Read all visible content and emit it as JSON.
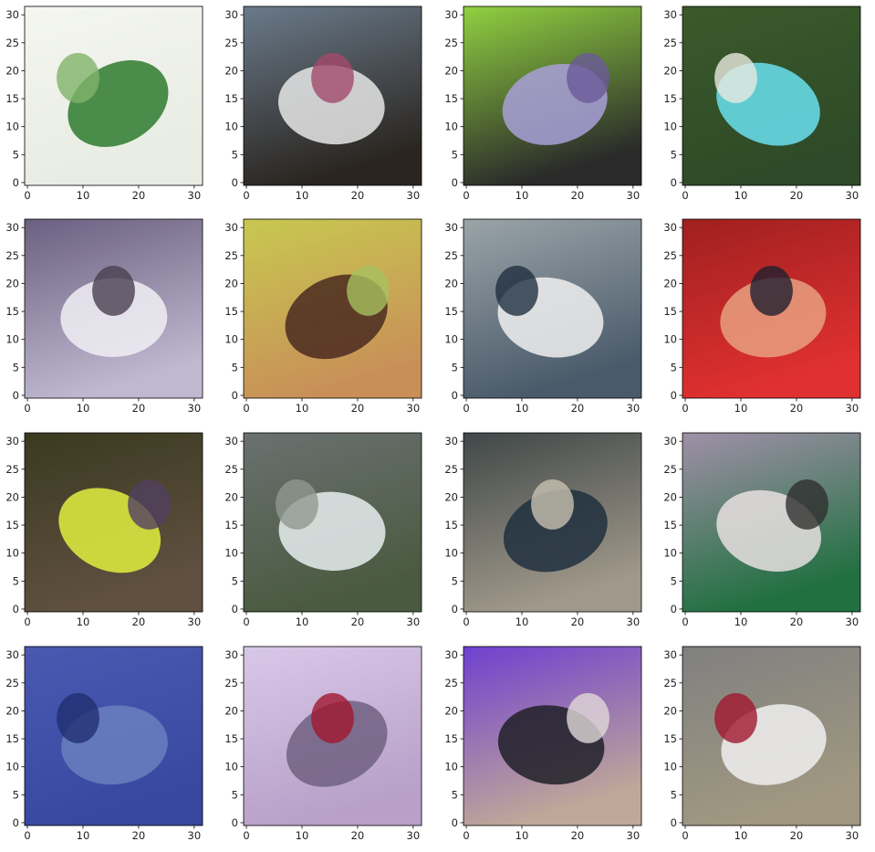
{
  "chart_data": {
    "type": "image",
    "xlim": [
      -0.5,
      31.5
    ],
    "ylim": [
      31.5,
      -0.5
    ],
    "xticks": [
      0,
      10,
      20,
      30
    ],
    "yticks": [
      0,
      5,
      10,
      15,
      20,
      25,
      30
    ],
    "rows": 4,
    "cols": 4
  }
}
